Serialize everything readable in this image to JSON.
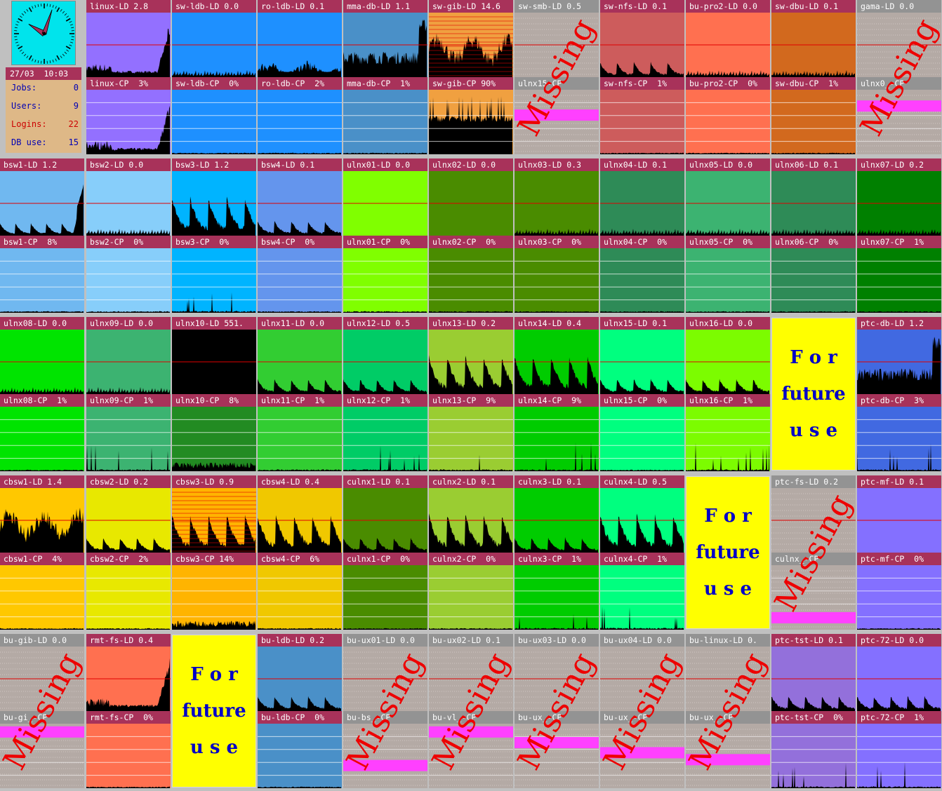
{
  "status": {
    "date": "27/03",
    "time": "10:03",
    "stats": [
      {
        "label": "Jobs:",
        "value": "0",
        "color": "#0000b4"
      },
      {
        "label": "Users:",
        "value": "9",
        "color": "#0000b4"
      },
      {
        "label": "Logins:",
        "value": "22",
        "color": "#cc0000"
      },
      {
        "label": "DB use:",
        "value": "15",
        "color": "#0000b4"
      }
    ],
    "clock_bg": "#00e4ec"
  },
  "future_text": [
    "F o r",
    "future",
    "u s e"
  ],
  "missing_text": "Missing",
  "hosts": [
    {
      "ld": "linux-LD 2.8",
      "cp": "linux-CP  3%",
      "color": "#9370ff",
      "ldp": "rise",
      "cpp": "rise"
    },
    {
      "ld": "sw-ldb-LD 0.0",
      "cp": "sw-ldb-CP  0%",
      "color": "#1e90ff",
      "ldp": "tiny",
      "cpp": "flat"
    },
    {
      "ld": "ro-ldb-LD 0.1",
      "cp": "ro-ldb-CP  2%",
      "color": "#1e90ff",
      "ldp": "noisy",
      "cpp": "flat"
    },
    {
      "ld": "mma-db-LD 1.1",
      "cp": "mma-db-CP  1%",
      "color": "#4a90c8",
      "ldp": "noisy2",
      "cpp": "flat"
    },
    {
      "ld": "sw-gib-LD 14.6",
      "cp": "sw-gib-CP 90%",
      "color": "#f0a040",
      "ldp": "high",
      "cpp": "highcp",
      "ldg": true
    },
    {
      "ld": "sw-smb-LD 0.5",
      "cp": "ulnx15-CP",
      "missing": true,
      "bar": 37
    },
    {
      "ld": "sw-nfs-LD 0.1",
      "cp": "sw-nfs-CP  1%",
      "color": "#cd5c5c",
      "ldp": "saw",
      "cpp": "flat"
    },
    {
      "ld": "bu-pro2-LD 0.0",
      "cp": "bu-pro2-CP  0%",
      "color": "#ff7050",
      "ldp": "tiny",
      "cpp": "flat"
    },
    {
      "ld": "sw-dbu-LD 0.1",
      "cp": "sw-dbu-CP  1%",
      "color": "#d2691e",
      "ldp": "tiny",
      "cpp": "flat"
    },
    {
      "ld": "gama-LD 0.0",
      "cp": "ulnx0_-CP",
      "missing": true,
      "bar": 20
    },
    {
      "ld": "bsw1-LD 1.2",
      "cp": "bsw1-CP  8%",
      "color": "#70b8f0",
      "ldp": "sawrise",
      "cpp": "flat"
    },
    {
      "ld": "bsw2-LD 0.0",
      "cp": "bsw2-CP  0%",
      "color": "#87cefa",
      "ldp": "tiny",
      "cpp": "flat"
    },
    {
      "ld": "bsw3-LD 1.2",
      "cp": "bsw3-CP  0%",
      "color": "#00b4ff",
      "ldp": "bigsaw",
      "cpp": "spike"
    },
    {
      "ld": "bsw4-LD 0.1",
      "cp": "bsw4-CP  0%",
      "color": "#6495ed",
      "ldp": "saw",
      "cpp": "flat"
    },
    {
      "ld": "ulnx01-LD 0.0",
      "cp": "ulnx01-CP  0%",
      "color": "#80ff00",
      "ldp": "none",
      "cpp": "flat"
    },
    {
      "ld": "ulnx02-LD 0.0",
      "cp": "ulnx02-CP  0%",
      "color": "#4a8c00",
      "ldp": "none",
      "cpp": "flat"
    },
    {
      "ld": "ulnx03-LD 0.3",
      "cp": "ulnx03-CP  0%",
      "color": "#4a8c00",
      "ldp": "tiny",
      "cpp": "flat"
    },
    {
      "ld": "ulnx04-LD 0.1",
      "cp": "ulnx04-CP  0%",
      "color": "#2e8b57",
      "ldp": "tiny",
      "cpp": "flat"
    },
    {
      "ld": "ulnx05-LD 0.0",
      "cp": "ulnx05-CP  0%",
      "color": "#3cb371",
      "ldp": "tiny",
      "cpp": "flat"
    },
    {
      "ld": "ulnx06-LD 0.1",
      "cp": "ulnx06-CP  0%",
      "color": "#2e8b57",
      "ldp": "tiny",
      "cpp": "flat"
    },
    {
      "ld": "ulnx07-LD 0.2",
      "cp": "ulnx07-CP  1%",
      "color": "#008000",
      "ldp": "tiny",
      "cpp": "flat"
    },
    {
      "ld": "ulnx08-LD 0.0",
      "cp": "ulnx08-CP  1%",
      "color": "#00e400",
      "ldp": "tiny",
      "cpp": "flat"
    },
    {
      "ld": "ulnx09-LD 0.0",
      "cp": "ulnx09-CP  1%",
      "color": "#3cb371",
      "ldp": "tiny",
      "cpp": "spike"
    },
    {
      "ld": "ulnx10-LD 551.",
      "cp": "ulnx10-CP  8%",
      "color": "#000000",
      "cpcolor": "#228b22",
      "ldp": "none",
      "cpp": "grass"
    },
    {
      "ld": "ulnx11-LD 0.0",
      "cp": "ulnx11-CP  1%",
      "color": "#32cd32",
      "ldp": "saw",
      "cpp": "spike"
    },
    {
      "ld": "ulnx12-LD 0.5",
      "cp": "ulnx12-CP  1%",
      "color": "#00cc66",
      "ldp": "saw",
      "cpp": "spike"
    },
    {
      "ld": "ulnx13-LD 0.2",
      "cp": "ulnx13-CP  9%",
      "color": "#9acd32",
      "ldp": "bigsaw",
      "cpp": "spike"
    },
    {
      "ld": "ulnx14-LD 0.4",
      "cp": "ulnx14-CP  9%",
      "color": "#00cc00",
      "ldp": "bigsaw",
      "cpp": "spike"
    },
    {
      "ld": "ulnx15-LD 0.1",
      "cp": "ulnx15-CP  0%",
      "color": "#00ff7f",
      "ldp": "saw",
      "cpp": "flat"
    },
    {
      "ld": "ulnx16-LD 0.0",
      "cp": "ulnx16-CP  1%",
      "color": "#7cfc00",
      "ldp": "saw",
      "cpp": "spike"
    },
    {
      "ld": "ptc-db-LD 1.2",
      "cp": "ptc-db-CP  3%",
      "color": "#4169e1",
      "ldp": "noisy2",
      "cpp": "spike"
    },
    {
      "ld": "cbsw1-LD 1.4",
      "cp": "cbsw1-CP  4%",
      "color": "#ffc800",
      "ldp": "high",
      "cpp": "flat"
    },
    {
      "ld": "cbsw2-LD 0.2",
      "cp": "cbsw2-CP  2%",
      "color": "#e8e800",
      "ldp": "saw",
      "cpp": "flat"
    },
    {
      "ld": "cbsw3-LD 0.9",
      "cp": "cbsw3-CP 14%",
      "color": "#ffb400",
      "ldp": "bigsaw",
      "cpp": "grass",
      "ldg": true
    },
    {
      "ld": "cbsw4-LD 0.4",
      "cp": "cbsw4-CP  6%",
      "color": "#f0c800",
      "ldp": "bigsaw",
      "cpp": "flat"
    },
    {
      "ld": "culnx1-LD 0.1",
      "cp": "culnx1-CP  0%",
      "color": "#4a8c00",
      "ldp": "saw",
      "cpp": "flat"
    },
    {
      "ld": "culnx2-LD 0.1",
      "cp": "culnx2-CP  0%",
      "color": "#9acd32",
      "ldp": "bigsaw",
      "cpp": "flat"
    },
    {
      "ld": "culnx3-LD 0.1",
      "cp": "culnx3-CP  1%",
      "color": "#00cc00",
      "ldp": "saw",
      "cpp": "spike"
    },
    {
      "ld": "culnx4-LD 0.5",
      "cp": "culnx4-CP  1%",
      "color": "#00ff7f",
      "ldp": "bigsaw",
      "cpp": "spike"
    },
    {
      "ld": "ptc-fs-LD 0.2",
      "cp": "culnx_-CP",
      "missing": true,
      "bar": 88
    },
    {
      "ld": "ptc-mf-LD 0.1",
      "cp": "ptc-mf-CP  0%",
      "color": "#8470ff",
      "ldp": "none",
      "cpp": "flat"
    },
    {
      "ld": "bu-gib-LD 0.0",
      "cp": "bu-gi_-CP",
      "missing": true,
      "bar": 5
    },
    {
      "ld": "rmt-fs-LD 0.4",
      "cp": "rmt-fs-CP  0%",
      "color": "#ff7050",
      "ldp": "rise",
      "cpp": "flat"
    },
    {
      "ld": "bu-ldb-LD 0.2",
      "cp": "bu-ldb-CP  0%",
      "color": "#4a90c8",
      "ldp": "saw",
      "cpp": "flat"
    },
    {
      "ld": "bu-ux01-LD 0.0",
      "cp": "bu-bs_-CP",
      "missing": true,
      "bar": 68
    },
    {
      "ld": "bu-ux02-LD 0.1",
      "cp": "bu-vl_-CP",
      "missing": true,
      "bar": 5
    },
    {
      "ld": "bu-ux03-LD 0.0",
      "cp": "bu-ux_-CP",
      "missing": true,
      "bar": 25
    },
    {
      "ld": "bu-ux04-LD 0.0",
      "cp": "bu-ux_-CP",
      "missing": true,
      "bar": 44
    },
    {
      "ld": "bu-linux-LD 0.",
      "cp": "bu-ux_-CP",
      "missing": true,
      "bar": 57
    },
    {
      "ld": "ptc-tst-LD 0.1",
      "cp": "ptc-tst-CP  0%",
      "color": "#9370db",
      "ldp": "saw",
      "cpp": "spike"
    },
    {
      "ld": "ptc-72-LD 0.0",
      "cp": "ptc-72-CP  1%",
      "color": "#8470ff",
      "ldp": "saw",
      "cpp": "spike"
    }
  ]
}
